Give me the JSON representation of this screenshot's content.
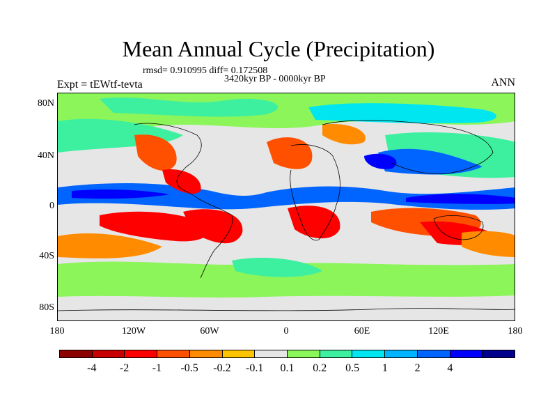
{
  "title": "Mean Annual Cycle (Precipitation)",
  "stats": "rmsd= 0.910995  diff= 0.172508",
  "period": "3420kyr BP - 0000kyr BP",
  "experiment": "Expt = tEWtf-tevta",
  "season": "ANN",
  "y_ticks": [
    "80N",
    "40N",
    "0",
    "40S",
    "80S"
  ],
  "x_ticks": [
    "180",
    "120W",
    "60W",
    "0",
    "60E",
    "120E",
    "180"
  ],
  "colorbar": {
    "colors": [
      "#8b0000",
      "#c80000",
      "#ff0000",
      "#ff5000",
      "#ff8c00",
      "#ffc400",
      "#e6e6e6",
      "#8cf55a",
      "#3cf0a0",
      "#00e6f0",
      "#00b4ff",
      "#0064ff",
      "#0000ff",
      "#00008c"
    ],
    "labels": [
      "-4",
      "-2",
      "-1",
      "-0.5",
      "-0.2",
      "-0.1",
      "0.1",
      "0.2",
      "0.5",
      "1",
      "2",
      "4"
    ]
  }
}
